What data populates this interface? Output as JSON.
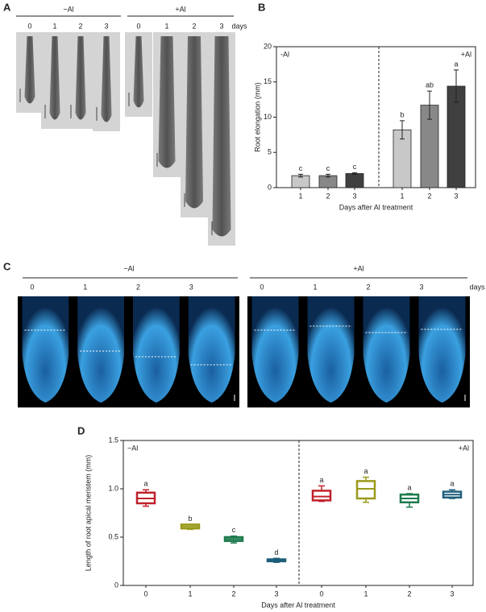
{
  "panels": [
    {
      "label": "A",
      "groups": [
        "−Al",
        "+Al"
      ],
      "days": [
        "0",
        "1",
        "2",
        "3"
      ],
      "unit": "days"
    },
    {
      "label": "C",
      "groups": [
        "−Al",
        "+Al"
      ],
      "days": [
        "0",
        "1",
        "2",
        "3"
      ],
      "unit": "days"
    }
  ],
  "chart_data": [
    {
      "type": "bar",
      "panel_label": "B",
      "y_label": "Root elongation (mm)",
      "x_label": "Days after Al treatment",
      "groups": [
        "-Al",
        "+Al"
      ],
      "categories": [
        "1",
        "2",
        "3",
        "1",
        "2",
        "3"
      ],
      "values": [
        1.7,
        1.7,
        2.0,
        8.2,
        11.7,
        14.4
      ],
      "errors": [
        0.2,
        0.2,
        0.1,
        1.3,
        2.0,
        2.3
      ],
      "letters": [
        "c",
        "c",
        "c",
        "b",
        "ab",
        "a"
      ],
      "colors": [
        "#c8c8c8",
        "#888888",
        "#404040",
        "#c8c8c8",
        "#888888",
        "#404040"
      ],
      "ylim": [
        0,
        20
      ],
      "yticks": [
        0,
        5,
        10,
        15,
        20
      ]
    },
    {
      "type": "box",
      "panel_label": "D",
      "y_label": "Length of root apical meristem (mm)",
      "x_label": "Days after Al treatment",
      "groups": [
        "−Al",
        "+Al"
      ],
      "categories": [
        "0",
        "1",
        "2",
        "3",
        "0",
        "1",
        "2",
        "3"
      ],
      "min": [
        0.82,
        0.58,
        0.44,
        0.24,
        0.87,
        0.86,
        0.81,
        0.9
      ],
      "q1": [
        0.85,
        0.59,
        0.46,
        0.25,
        0.88,
        0.9,
        0.86,
        0.91
      ],
      "median": [
        0.9,
        0.61,
        0.48,
        0.26,
        0.92,
        1.0,
        0.9,
        0.94
      ],
      "q3": [
        0.96,
        0.63,
        0.5,
        0.27,
        0.98,
        1.08,
        0.94,
        0.97
      ],
      "max": [
        0.99,
        0.63,
        0.51,
        0.28,
        1.03,
        1.12,
        0.95,
        0.99
      ],
      "letters": [
        "a",
        "b",
        "c",
        "d",
        "a",
        "a",
        "a",
        "a"
      ],
      "colors": [
        "#c0212b",
        "#9a9a1a",
        "#1e7a4e",
        "#1d5f7a",
        "#c0212b",
        "#9a9a1a",
        "#1e7a4e",
        "#1d5f7a"
      ],
      "ylim": [
        0,
        1.5
      ],
      "yticks": [
        0,
        0.5,
        {
          "value": 1.0,
          "label": "1.0"
        },
        1.5
      ]
    }
  ]
}
